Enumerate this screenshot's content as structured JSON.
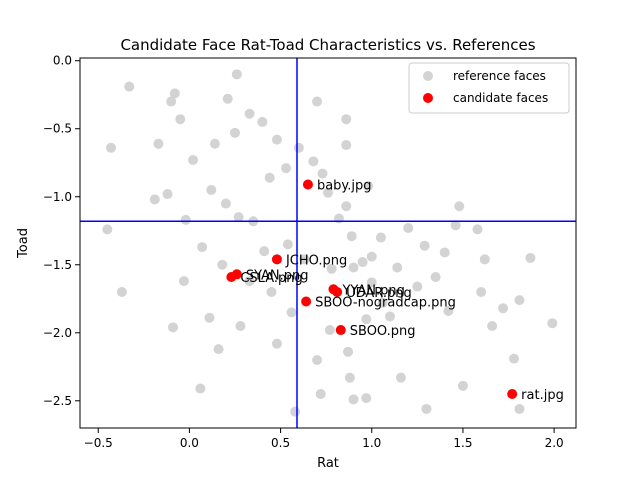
{
  "chart_data": {
    "type": "scatter",
    "title": "Candidate Face Rat-Toad Characteristics vs. References",
    "xlabel": "Rat",
    "ylabel": "Toad",
    "xlim": [
      -0.6,
      2.12
    ],
    "ylim": [
      -2.7,
      0.02
    ],
    "xticks": [
      -0.5,
      0.0,
      0.5,
      1.0,
      1.5,
      2.0
    ],
    "xtick_labels": [
      "−0.5",
      "0.0",
      "0.5",
      "1.0",
      "1.5",
      "2.0"
    ],
    "yticks": [
      0.0,
      -0.5,
      -1.0,
      -1.5,
      -2.0,
      -2.5
    ],
    "ytick_labels": [
      "0.0",
      "−0.5",
      "−1.0",
      "−1.5",
      "−2.0",
      "−2.5"
    ],
    "grid": false,
    "legend_position": "upper right",
    "reference_lines": {
      "vertical_x": 0.59,
      "horizontal_y": -1.18,
      "color": "#0000ff"
    },
    "series": [
      {
        "name": "reference faces",
        "color": "#d3d3d3",
        "points": [
          [
            -0.43,
            -0.64
          ],
          [
            -0.33,
            -0.19
          ],
          [
            -0.37,
            -1.7
          ],
          [
            -0.45,
            -1.24
          ],
          [
            -0.19,
            -1.02
          ],
          [
            -0.17,
            -0.61
          ],
          [
            -0.1,
            -0.3
          ],
          [
            -0.08,
            -0.24
          ],
          [
            -0.09,
            -1.96
          ],
          [
            -0.05,
            -0.43
          ],
          [
            -0.03,
            -1.62
          ],
          [
            0.06,
            -2.41
          ],
          [
            0.11,
            -1.89
          ],
          [
            0.16,
            -2.12
          ],
          [
            0.26,
            -0.1
          ],
          [
            0.33,
            -0.39
          ],
          [
            0.21,
            -0.28
          ],
          [
            0.7,
            -0.3
          ],
          [
            0.86,
            -0.43
          ],
          [
            0.86,
            -0.62
          ],
          [
            0.98,
            -0.92
          ],
          [
            1.0,
            -1.44
          ],
          [
            1.2,
            -1.23
          ],
          [
            1.29,
            -1.36
          ],
          [
            1.4,
            -1.41
          ],
          [
            1.46,
            -1.21
          ],
          [
            1.48,
            -1.07
          ],
          [
            1.58,
            -1.24
          ],
          [
            1.62,
            -1.46
          ],
          [
            1.6,
            -1.7
          ],
          [
            1.66,
            -1.95
          ],
          [
            1.72,
            -1.82
          ],
          [
            1.81,
            -1.76
          ],
          [
            1.81,
            -2.56
          ],
          [
            1.78,
            -2.19
          ],
          [
            1.99,
            -1.93
          ],
          [
            1.87,
            -1.45
          ],
          [
            1.5,
            -2.39
          ],
          [
            1.3,
            -2.56
          ],
          [
            0.97,
            -2.48
          ],
          [
            0.9,
            -2.49
          ],
          [
            0.72,
            -2.45
          ],
          [
            0.58,
            -2.58
          ],
          [
            0.88,
            -2.33
          ],
          [
            1.16,
            -2.33
          ],
          [
            0.95,
            -1.48
          ],
          [
            0.9,
            -1.52
          ],
          [
            0.78,
            -1.53
          ],
          [
            0.63,
            -1.46
          ],
          [
            0.54,
            -1.35
          ],
          [
            0.41,
            -1.4
          ],
          [
            0.35,
            -1.18
          ],
          [
            0.27,
            -1.15
          ],
          [
            0.2,
            -1.05
          ],
          [
            0.12,
            -0.95
          ],
          [
            0.44,
            -0.86
          ],
          [
            0.53,
            -0.79
          ],
          [
            0.68,
            -0.74
          ],
          [
            0.76,
            -0.97
          ],
          [
            0.86,
            -1.07
          ],
          [
            1.05,
            -1.3
          ],
          [
            1.14,
            -1.52
          ],
          [
            1.25,
            -1.66
          ],
          [
            1.35,
            -1.59
          ],
          [
            1.42,
            -1.84
          ],
          [
            1.06,
            -1.78
          ],
          [
            0.97,
            -1.9
          ],
          [
            0.77,
            -1.98
          ],
          [
            0.56,
            -1.85
          ],
          [
            0.45,
            -1.7
          ],
          [
            0.33,
            -1.62
          ],
          [
            0.18,
            -1.5
          ],
          [
            0.07,
            -1.37
          ],
          [
            -0.02,
            -1.17
          ],
          [
            -0.12,
            -0.98
          ],
          [
            0.02,
            -0.73
          ],
          [
            0.14,
            -0.61
          ],
          [
            0.25,
            -0.53
          ],
          [
            0.4,
            -0.45
          ],
          [
            0.48,
            -0.58
          ],
          [
            0.6,
            -0.64
          ],
          [
            0.73,
            -0.83
          ],
          [
            0.82,
            -1.16
          ],
          [
            0.89,
            -1.29
          ],
          [
            1.0,
            -1.63
          ],
          [
            1.1,
            -1.88
          ],
          [
            0.87,
            -2.14
          ],
          [
            0.7,
            -2.2
          ],
          [
            0.48,
            -2.08
          ],
          [
            0.28,
            -1.95
          ]
        ]
      },
      {
        "name": "candidate faces",
        "color": "#ff0000",
        "points": [
          {
            "label": "baby.jpg",
            "x": 0.65,
            "y": -0.91
          },
          {
            "label": "JCHO.png",
            "x": 0.48,
            "y": -1.46
          },
          {
            "label": "SYAN.png",
            "x": 0.26,
            "y": -1.57
          },
          {
            "label": "CSLA.png",
            "x": 0.23,
            "y": -1.59
          },
          {
            "label": "YYAN.png",
            "x": 0.79,
            "y": -1.68
          },
          {
            "label": "UDAR.png",
            "x": 0.81,
            "y": -1.7
          },
          {
            "label": "SBOO-nogradcap.png",
            "x": 0.64,
            "y": -1.77
          },
          {
            "label": "SBOO.png",
            "x": 0.83,
            "y": -1.98
          },
          {
            "label": "rat.jpg",
            "x": 1.77,
            "y": -2.45
          }
        ]
      }
    ]
  }
}
